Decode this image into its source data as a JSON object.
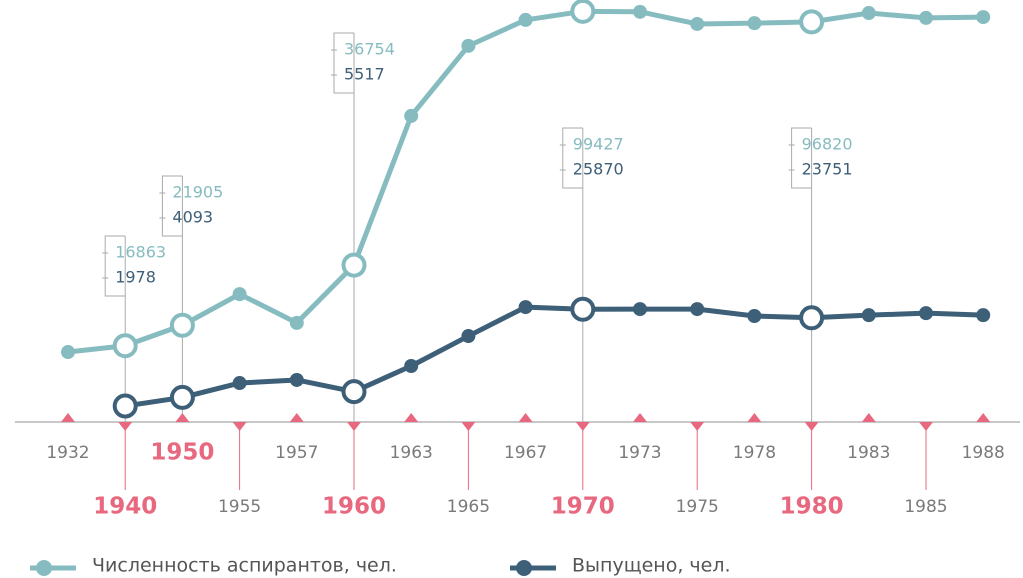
{
  "chart_data": {
    "type": "line",
    "categories": [
      "1932",
      "1940",
      "1950",
      "1955",
      "1957",
      "1960",
      "1963",
      "1965",
      "1967",
      "1970",
      "1973",
      "1975",
      "1978",
      "1980",
      "1983",
      "1985",
      "1988"
    ],
    "series": [
      {
        "name": "Численность аспирантов, чел.",
        "color": "#86bcc0",
        "values": [
          15300,
          16863,
          21905,
          29600,
          22500,
          36754,
          73600,
          90900,
          97300,
          99427,
          99300,
          96300,
          96500,
          96820,
          99000,
          97800,
          98000
        ]
      },
      {
        "name": "Выпущено, чел.",
        "color": "#3d5f78",
        "values": [
          null,
          1978,
          4093,
          7650,
          8400,
          5517,
          11850,
          19250,
          26400,
          25870,
          25900,
          25900,
          24200,
          23751,
          24400,
          24900,
          24400
        ]
      }
    ],
    "ylim": [
      0,
      100000
    ],
    "axis_color": "#e8697f"
  }
}
